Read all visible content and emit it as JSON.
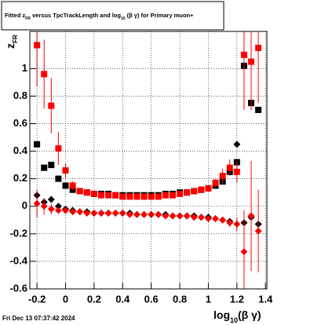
{
  "chart_data": {
    "type": "scatter",
    "title": [
      "Fitted  z",
      "FR",
      "  versus TpcTrackLength and log",
      "10",
      " (β γ) for Primary muon+"
    ],
    "x_label": [
      "log",
      "10",
      "(β γ)"
    ],
    "y_label": [
      "z",
      "FR"
    ],
    "footer": "Fri Dec 13 07:37:42 2024",
    "x": [
      -0.2,
      -0.15,
      -0.1,
      -0.05,
      0,
      0.05,
      0.1,
      0.15,
      0.2,
      0.25,
      0.3,
      0.35,
      0.4,
      0.45,
      0.5,
      0.55,
      0.6,
      0.65,
      0.7,
      0.75,
      0.8,
      0.85,
      0.9,
      0.95,
      1,
      1.05,
      1.1,
      1.15,
      1.2,
      1.25,
      1.3,
      1.35
    ],
    "series": [
      {
        "color": "#000000",
        "marker": "square",
        "values": [
          0.45,
          0.28,
          0.3,
          0.2,
          0.15,
          0.12,
          0.11,
          0.1,
          0.09,
          0.09,
          0.09,
          0.08,
          0.08,
          0.08,
          0.08,
          0.08,
          0.08,
          0.08,
          0.09,
          0.09,
          0.1,
          0.1,
          0.11,
          0.12,
          0.13,
          0.15,
          0.18,
          0.25,
          0.32,
          1.02,
          0.75,
          0.7
        ]
      },
      {
        "color": "#000000",
        "marker": "diamond",
        "values": [
          0.08,
          0.03,
          0.05,
          0.0,
          -0.02,
          -0.03,
          -0.04,
          -0.04,
          -0.05,
          -0.05,
          -0.05,
          -0.05,
          -0.05,
          -0.05,
          -0.06,
          -0.06,
          -0.06,
          -0.06,
          -0.06,
          -0.07,
          -0.07,
          -0.07,
          -0.07,
          -0.08,
          -0.08,
          -0.09,
          -0.1,
          -0.11,
          0.45,
          -0.12,
          -0.08,
          -0.13
        ]
      },
      {
        "color": "#ff0000",
        "marker": "square",
        "values": [
          1.17,
          0.96,
          0.73,
          0.42,
          0.26,
          0.15,
          0.11,
          0.1,
          0.09,
          0.08,
          0.08,
          0.08,
          0.07,
          0.07,
          0.07,
          0.07,
          0.07,
          0.07,
          0.08,
          0.08,
          0.09,
          0.1,
          0.11,
          0.12,
          0.13,
          0.17,
          0.22,
          0.28,
          0.25,
          1.1,
          1.05,
          1.15
        ],
        "errors": [
          0.3,
          0.25,
          0.2,
          0.12,
          0.05,
          0.03,
          0.02,
          0.02,
          0.01,
          0.01,
          0.01,
          0.01,
          0.01,
          0.01,
          0.01,
          0.01,
          0.01,
          0.01,
          0.01,
          0.01,
          0.01,
          0.01,
          0.02,
          0.02,
          0.02,
          0.03,
          0.05,
          0.06,
          0.08,
          0.4,
          0.35,
          0.4
        ]
      },
      {
        "color": "#ff0000",
        "marker": "diamond",
        "values": [
          0.02,
          0.0,
          -0.02,
          -0.03,
          -0.03,
          -0.04,
          -0.04,
          -0.05,
          -0.05,
          -0.05,
          -0.05,
          -0.05,
          -0.05,
          -0.06,
          -0.06,
          -0.06,
          -0.06,
          -0.06,
          -0.07,
          -0.07,
          -0.07,
          -0.07,
          -0.08,
          -0.08,
          -0.09,
          -0.09,
          -0.1,
          -0.12,
          -0.13,
          -0.33,
          -0.07,
          -0.18
        ],
        "errors": [
          0.1,
          0.06,
          0.04,
          0.02,
          0.01,
          0.01,
          0.01,
          0.01,
          0.01,
          0.01,
          0.01,
          0.01,
          0.01,
          0.01,
          0.01,
          0.01,
          0.01,
          0.01,
          0.01,
          0.01,
          0.01,
          0.01,
          0.01,
          0.01,
          0.01,
          0.02,
          0.02,
          0.03,
          0.05,
          0.3,
          0.4,
          0.3
        ]
      }
    ],
    "xlim": [
      -0.25,
      1.41
    ],
    "ylim": [
      -0.6,
      1.27
    ],
    "xticks": [
      -0.2,
      0,
      0.2,
      0.4,
      0.6,
      0.8,
      1,
      1.2,
      1.4
    ],
    "yticks": [
      -0.6,
      -0.4,
      -0.2,
      0,
      0.2,
      0.4,
      0.6,
      0.8,
      1
    ],
    "grid": true
  }
}
